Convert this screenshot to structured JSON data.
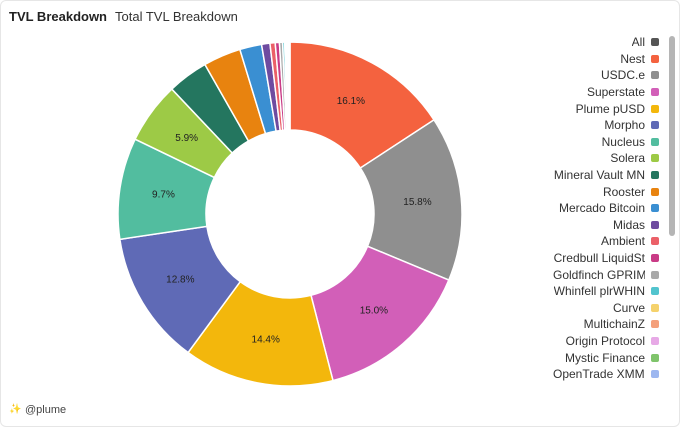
{
  "header": {
    "title": "TVL Breakdown",
    "subtitle": "Total TVL Breakdown"
  },
  "footer": {
    "handle": "@plume"
  },
  "chart_data": {
    "type": "pie",
    "categories": [
      "Nest",
      "USDC.e",
      "Superstate",
      "Plume pUSD",
      "Morpho",
      "Nucleus",
      "Solera",
      "Mineral Vault MN",
      "Rooster",
      "Mercado Bitcoin",
      "Midas",
      "Ambient",
      "Credbull LiquidSt",
      "Goldfinch GPRIM",
      "Whinfell plrWHIN",
      "Curve",
      "MultichainZ",
      "Origin Protocol",
      "Mystic Finance",
      "OpenTrade XMMF"
    ],
    "values": [
      16.1,
      15.8,
      15.0,
      14.4,
      12.8,
      9.7,
      5.9,
      3.9,
      3.6,
      2.1,
      0.8,
      0.5,
      0.4,
      0.3,
      0.2,
      0.1,
      0.1,
      0.1,
      0.1,
      0.1
    ],
    "labels": [
      "16.1%",
      "15.8%",
      "15.0%",
      "14.4%",
      "12.8%",
      "9.7%",
      "5.9%",
      "",
      "",
      "",
      "",
      "",
      "",
      "",
      "",
      "",
      "",
      "",
      "",
      ""
    ],
    "colors": [
      "#F4623F",
      "#8F8F8F",
      "#D25FB8",
      "#F3B70C",
      "#5F6AB6",
      "#52BD9F",
      "#9DCA46",
      "#24765F",
      "#E8830F",
      "#3A8FD2",
      "#6E4BA0",
      "#EB6068",
      "#C93B86",
      "#A9A9A9",
      "#52C4CE",
      "#F5D26C",
      "#F4A07B",
      "#E7A9E6",
      "#7FC46B",
      "#9DB7F0"
    ],
    "legend": [
      "All",
      "Nest",
      "USDC.e",
      "Superstate",
      "Plume pUSD",
      "Morpho",
      "Nucleus",
      "Solera",
      "Mineral Vault MN",
      "Rooster",
      "Mercado Bitcoin",
      "Midas",
      "Ambient",
      "Credbull LiquidSt",
      "Goldfinch GPRIM",
      "Whinfell plrWHIN",
      "Curve",
      "MultichainZ",
      "Origin Protocol",
      "Mystic Finance",
      "OpenTrade XMMF"
    ],
    "legend_colors": [
      "#555555",
      "#F4623F",
      "#8F8F8F",
      "#D25FB8",
      "#F3B70C",
      "#5F6AB6",
      "#52BD9F",
      "#9DCA46",
      "#24765F",
      "#E8830F",
      "#3A8FD2",
      "#6E4BA0",
      "#EB6068",
      "#C93B86",
      "#A9A9A9",
      "#52C4CE",
      "#F5D26C",
      "#F4A07B",
      "#E7A9E6",
      "#7FC46B",
      "#9DB7F0"
    ],
    "legend_position": "right",
    "donut": true
  }
}
